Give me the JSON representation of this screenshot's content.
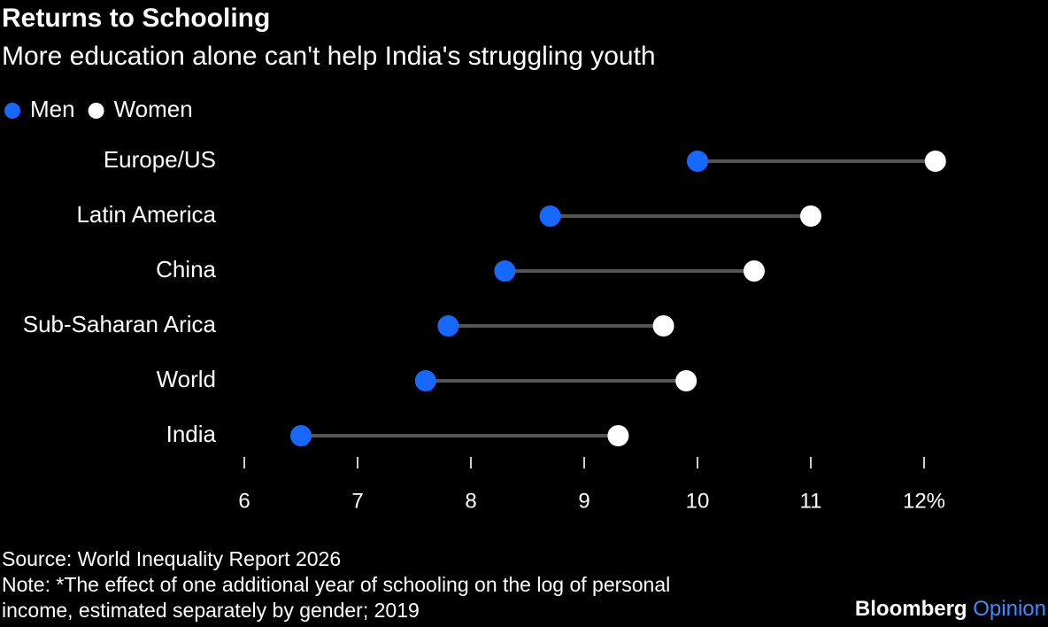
{
  "chart_data": {
    "type": "dumbbell",
    "title": "Returns to Schooling",
    "subtitle": "More education alone can't help India's struggling youth",
    "categories": [
      "Europe/US",
      "Latin America",
      "China",
      "Sub-Saharan Arica",
      "World",
      "India"
    ],
    "series": [
      {
        "name": "Men",
        "color": "#1668ff",
        "values": [
          10.0,
          8.7,
          8.3,
          7.8,
          7.6,
          6.5
        ]
      },
      {
        "name": "Women",
        "color": "#ffffff",
        "values": [
          12.1,
          11.0,
          10.5,
          9.7,
          9.9,
          9.3
        ]
      }
    ],
    "connector_color": "#555555",
    "xlim": [
      6,
      12
    ],
    "xticks": [
      6,
      7,
      8,
      9,
      10,
      11,
      {
        "value": 12,
        "label": "12%"
      }
    ],
    "source": "Source: World Inequality Report 2026",
    "notes": [
      "Note: *The effect of one additional year of schooling on the log of personal",
      "income, estimated separately by gender; 2019"
    ],
    "logo": [
      "Bloomberg",
      "Opinion"
    ]
  }
}
